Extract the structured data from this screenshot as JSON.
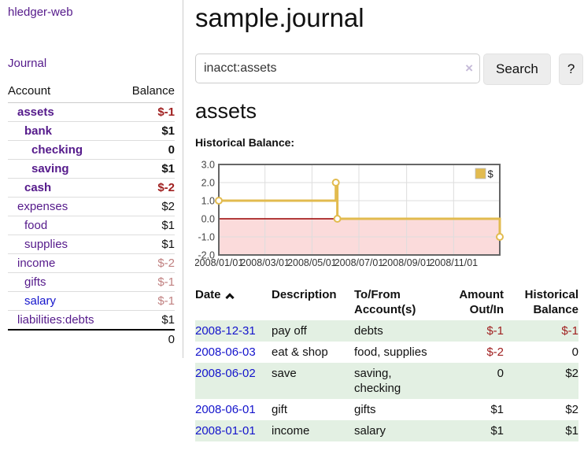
{
  "app": {
    "brand": "hledger-web"
  },
  "sidebar": {
    "journal_label": "Journal",
    "accounts": {
      "header_account": "Account",
      "header_balance": "Balance",
      "rows": [
        {
          "name": "assets",
          "balance": "$-1",
          "depth": 1,
          "bold": true,
          "tone": "neg",
          "link": "purple"
        },
        {
          "name": "bank",
          "balance": "$1",
          "depth": 2,
          "bold": true,
          "tone": "pos",
          "link": "purple"
        },
        {
          "name": "checking",
          "balance": "0",
          "depth": 3,
          "bold": true,
          "tone": "pos",
          "link": "purple"
        },
        {
          "name": "saving",
          "balance": "$1",
          "depth": 3,
          "bold": true,
          "tone": "pos",
          "link": "purple"
        },
        {
          "name": "cash",
          "balance": "$-2",
          "depth": 2,
          "bold": true,
          "tone": "neg",
          "link": "purple"
        },
        {
          "name": "expenses",
          "balance": "$2",
          "depth": 1,
          "bold": false,
          "tone": "pos",
          "link": "purple"
        },
        {
          "name": "food",
          "balance": "$1",
          "depth": 2,
          "bold": false,
          "tone": "pos",
          "link": "purple"
        },
        {
          "name": "supplies",
          "balance": "$1",
          "depth": 2,
          "bold": false,
          "tone": "pos",
          "link": "purple"
        },
        {
          "name": "income",
          "balance": "$-2",
          "depth": 1,
          "bold": false,
          "tone": "neg-soft",
          "link": "purple"
        },
        {
          "name": "gifts",
          "balance": "$-1",
          "depth": 2,
          "bold": false,
          "tone": "neg-soft",
          "link": "purple"
        },
        {
          "name": "salary",
          "balance": "$-1",
          "depth": 2,
          "bold": false,
          "tone": "neg-soft",
          "link": "blue"
        },
        {
          "name": "liabilities:debts",
          "balance": "$1",
          "depth": 1,
          "bold": false,
          "tone": "pos",
          "link": "purple"
        }
      ],
      "total": "0"
    }
  },
  "main": {
    "title": "sample.journal",
    "search": {
      "value": "inacct:assets",
      "clear_icon": "×",
      "button_label": "Search",
      "help_label": "?"
    },
    "account_heading": "assets",
    "chart_label": "Historical Balance:"
  },
  "chart_data": {
    "type": "line",
    "step": true,
    "title": "Historical Balance:",
    "series": [
      {
        "name": "$",
        "points": [
          [
            "2008-01-01",
            1
          ],
          [
            "2008-06-01",
            2
          ],
          [
            "2008-06-03",
            0
          ],
          [
            "2008-12-31",
            -1
          ]
        ]
      }
    ],
    "x_range": [
      "2008-01-01",
      "2008-12-31"
    ],
    "ylim": [
      -2,
      3
    ],
    "yticks": [
      "3.0",
      "2.0",
      "1.0",
      "0.0",
      "-1.0",
      "-2.0"
    ],
    "xticks": [
      {
        "date": "2008-01-01",
        "label": "2008/01/01"
      },
      {
        "date": "2008-03-01",
        "label": "2008/03/01"
      },
      {
        "date": "2008-05-01",
        "label": "2008/05/01"
      },
      {
        "date": "2008-07-01",
        "label": "2008/07/01"
      },
      {
        "date": "2008-09-01",
        "label": "2008/09/01"
      },
      {
        "date": "2008-11-01",
        "label": "2008/11/01"
      }
    ],
    "legend": {
      "label": "$",
      "position": "top-right"
    },
    "grid": true,
    "negative_region_highlighted": true
  },
  "register": {
    "headers": {
      "date": "Date",
      "description": "Description",
      "tofrom": "To/From Account(s)",
      "amount": "Amount Out/In",
      "balance": "Historical Balance"
    },
    "sort": {
      "column": "date",
      "direction": "asc"
    },
    "rows": [
      {
        "date": "2008-12-31",
        "description": "pay off",
        "accounts": "debts",
        "amount": "$-1",
        "amount_neg": true,
        "balance": "$-1",
        "balance_neg": true
      },
      {
        "date": "2008-06-03",
        "description": "eat & shop",
        "accounts": "food, supplies",
        "amount": "$-2",
        "amount_neg": true,
        "balance": "0",
        "balance_neg": false
      },
      {
        "date": "2008-06-02",
        "description": "save",
        "accounts": "saving, checking",
        "amount": "0",
        "amount_neg": false,
        "balance": "$2",
        "balance_neg": false
      },
      {
        "date": "2008-06-01",
        "description": "gift",
        "accounts": "gifts",
        "amount": "$1",
        "amount_neg": false,
        "balance": "$2",
        "balance_neg": false
      },
      {
        "date": "2008-01-01",
        "description": "income",
        "accounts": "salary",
        "amount": "$1",
        "amount_neg": false,
        "balance": "$1",
        "balance_neg": false
      }
    ]
  },
  "colors": {
    "link_purple": "#551a8b",
    "link_blue": "#1414cc",
    "negative": "#a02020",
    "negative_soft": "#c08080",
    "row_green": "#e3f0e3",
    "chart_gold": "#e2bb4f",
    "chart_negative_fill": "#fbdbdb",
    "chart_zero_line": "#990000",
    "chart_border": "#666666",
    "chart_grid": "#dddddd"
  }
}
